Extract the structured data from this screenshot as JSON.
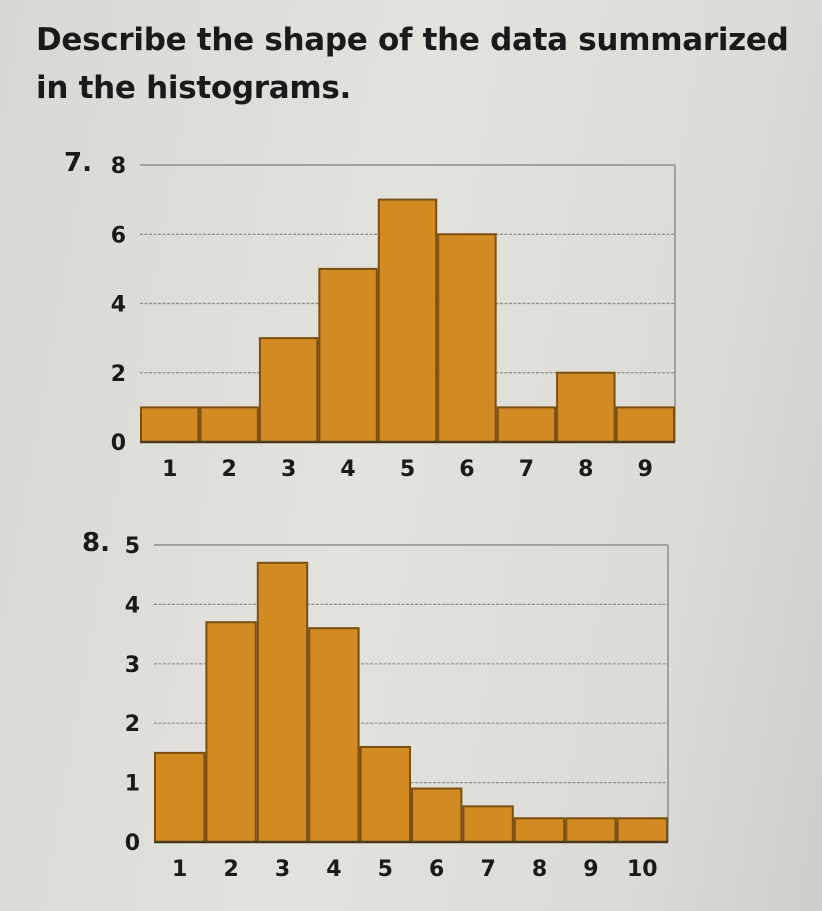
{
  "instruction": "Describe the shape of the data summarized in the histograms.",
  "problems": [
    {
      "number": "7.",
      "chart_data": {
        "type": "bar",
        "categories": [
          "1",
          "2",
          "3",
          "4",
          "5",
          "6",
          "7",
          "8",
          "9"
        ],
        "values": [
          1,
          1,
          3,
          5,
          7,
          6,
          1,
          2,
          1
        ],
        "ylim": [
          0,
          8
        ],
        "yticks": [
          "0",
          "2",
          "4",
          "6",
          "8"
        ],
        "grid": true,
        "bar_color": "#d28a22"
      }
    },
    {
      "number": "8.",
      "chart_data": {
        "type": "bar",
        "categories": [
          "1",
          "2",
          "3",
          "4",
          "5",
          "6",
          "7",
          "8",
          "9",
          "10"
        ],
        "values": [
          1.5,
          3.7,
          4.7,
          3.6,
          1.6,
          0.9,
          0.6,
          0.4,
          0.4,
          0.4
        ],
        "ylim": [
          0,
          5
        ],
        "yticks": [
          "0",
          "1",
          "2",
          "3",
          "4",
          "5"
        ],
        "grid": true,
        "bar_color": "#d28a22"
      }
    }
  ]
}
